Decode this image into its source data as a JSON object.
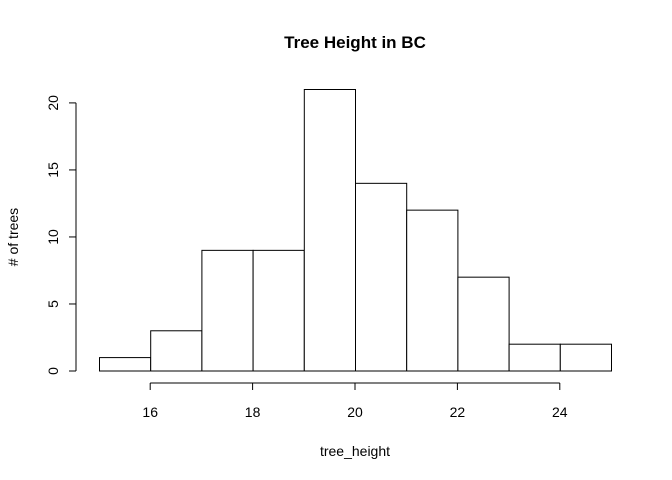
{
  "chart_data": {
    "type": "bar",
    "subtype": "histogram",
    "title": "Tree Height in BC",
    "xlabel": "tree_height",
    "ylabel": "# of trees",
    "bins": [
      {
        "start": 15,
        "end": 16,
        "count": 1
      },
      {
        "start": 16,
        "end": 17,
        "count": 3
      },
      {
        "start": 17,
        "end": 18,
        "count": 9
      },
      {
        "start": 18,
        "end": 19,
        "count": 9
      },
      {
        "start": 19,
        "end": 20,
        "count": 21
      },
      {
        "start": 20,
        "end": 21,
        "count": 14
      },
      {
        "start": 21,
        "end": 22,
        "count": 12
      },
      {
        "start": 22,
        "end": 23,
        "count": 7
      },
      {
        "start": 23,
        "end": 24,
        "count": 2
      },
      {
        "start": 24,
        "end": 25,
        "count": 2
      }
    ],
    "xlim": [
      15,
      25
    ],
    "ylim": [
      0,
      21
    ],
    "xticks": [
      16,
      18,
      20,
      22,
      24
    ],
    "yticks": [
      0,
      5,
      10,
      15,
      20
    ],
    "grid": false,
    "colors": {
      "bar_fill": "#ffffff",
      "bar_stroke": "#000000"
    }
  }
}
